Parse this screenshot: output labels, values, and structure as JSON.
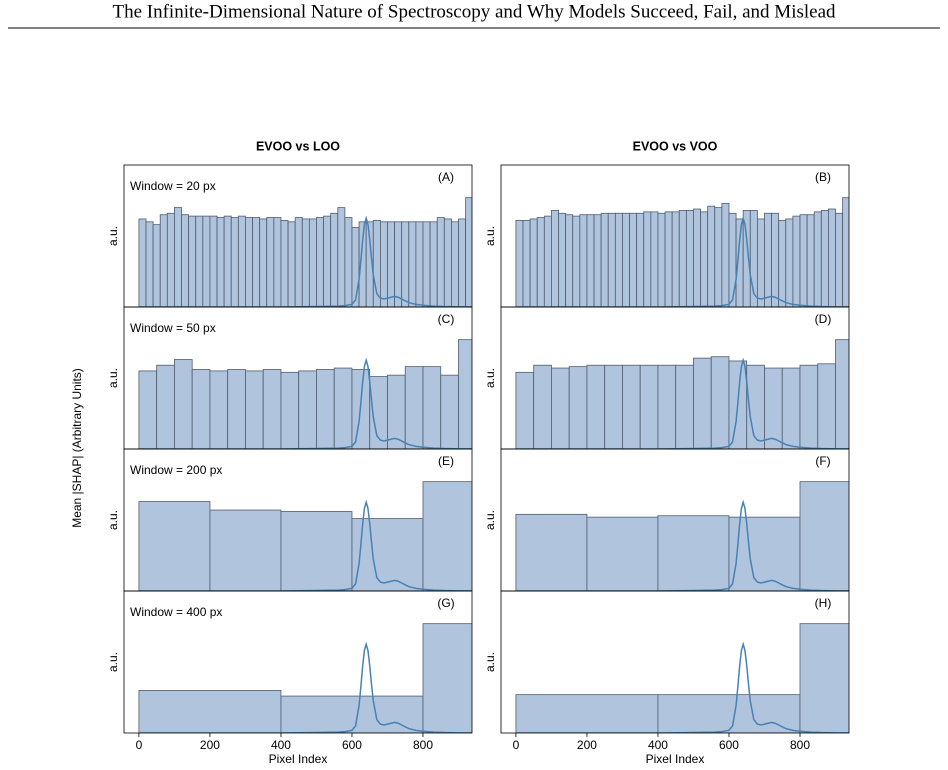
{
  "header": {
    "title": "The Infinite-Dimensional Nature of Spectroscopy and Why Models Succeed, Fail, and Mislead"
  },
  "figure_ylabel": "Mean |SHAP| (Arbitrary Units)",
  "spectrum": {
    "color": "#4682b4",
    "ylim": [
      0,
      1.6
    ],
    "x": [
      0,
      100,
      200,
      300,
      400,
      500,
      560,
      580,
      600,
      610,
      620,
      625,
      630,
      635,
      640,
      645,
      650,
      655,
      660,
      670,
      680,
      690,
      700,
      710,
      720,
      730,
      740,
      750,
      760,
      780,
      800,
      830,
      860,
      900,
      938
    ],
    "values": [
      0,
      0,
      0,
      0,
      0,
      0.005,
      0.01,
      0.015,
      0.03,
      0.08,
      0.31,
      0.52,
      0.75,
      0.93,
      1.0,
      0.93,
      0.76,
      0.55,
      0.36,
      0.15,
      0.1,
      0.09,
      0.1,
      0.11,
      0.12,
      0.11,
      0.09,
      0.07,
      0.05,
      0.03,
      0.02,
      0.01,
      0.005,
      0.002,
      0.001
    ]
  },
  "chart_data": [
    {
      "type": "histogram",
      "title": "EVOO vs LOO",
      "panel_label": "(A)",
      "annotation": "Window = 20 px",
      "ylabel": "a.u.",
      "color": "#b0c4de",
      "xlim": [
        -42,
        938
      ],
      "ylim": [
        0,
        1
      ],
      "bins": [
        0,
        20,
        40,
        60,
        80,
        100,
        120,
        140,
        160,
        180,
        200,
        220,
        240,
        260,
        280,
        300,
        320,
        340,
        360,
        380,
        400,
        420,
        440,
        460,
        480,
        500,
        520,
        540,
        560,
        580,
        600,
        620,
        640,
        660,
        680,
        700,
        720,
        740,
        760,
        780,
        800,
        820,
        840,
        860,
        880,
        900,
        920,
        940
      ],
      "values": [
        0.62,
        0.6,
        0.58,
        0.65,
        0.66,
        0.7,
        0.65,
        0.64,
        0.64,
        0.64,
        0.64,
        0.63,
        0.64,
        0.63,
        0.64,
        0.63,
        0.63,
        0.62,
        0.63,
        0.63,
        0.61,
        0.6,
        0.63,
        0.62,
        0.62,
        0.63,
        0.64,
        0.66,
        0.7,
        0.63,
        0.56,
        0.6,
        0.6,
        0.61,
        0.6,
        0.6,
        0.6,
        0.6,
        0.6,
        0.6,
        0.6,
        0.6,
        0.63,
        0.62,
        0.6,
        0.62,
        0.77
      ]
    },
    {
      "type": "histogram",
      "title": "EVOO vs VOO",
      "panel_label": "(B)",
      "ylabel": "a.u.",
      "color": "#b0c4de",
      "xlim": [
        -42,
        938
      ],
      "ylim": [
        0,
        1
      ],
      "bins": [
        0,
        20,
        40,
        60,
        80,
        100,
        120,
        140,
        160,
        180,
        200,
        220,
        240,
        260,
        280,
        300,
        320,
        340,
        360,
        380,
        400,
        420,
        440,
        460,
        480,
        500,
        520,
        540,
        560,
        580,
        600,
        620,
        640,
        660,
        680,
        700,
        720,
        740,
        760,
        780,
        800,
        820,
        840,
        860,
        880,
        900,
        920,
        940
      ],
      "values": [
        0.61,
        0.61,
        0.62,
        0.63,
        0.64,
        0.68,
        0.66,
        0.65,
        0.64,
        0.65,
        0.65,
        0.65,
        0.66,
        0.66,
        0.66,
        0.66,
        0.66,
        0.66,
        0.67,
        0.67,
        0.66,
        0.67,
        0.67,
        0.68,
        0.68,
        0.69,
        0.67,
        0.71,
        0.7,
        0.73,
        0.66,
        0.62,
        0.68,
        0.68,
        0.62,
        0.66,
        0.66,
        0.61,
        0.62,
        0.64,
        0.65,
        0.65,
        0.67,
        0.68,
        0.69,
        0.66,
        0.77
      ]
    },
    {
      "type": "histogram",
      "panel_label": "(C)",
      "annotation": "Window = 50 px",
      "ylabel": "a.u.",
      "color": "#b0c4de",
      "xlim": [
        -42,
        938
      ],
      "ylim": [
        0,
        1
      ],
      "bins": [
        0,
        50,
        100,
        150,
        200,
        250,
        300,
        350,
        400,
        450,
        500,
        550,
        600,
        650,
        700,
        750,
        800,
        850,
        900,
        950
      ],
      "values": [
        0.55,
        0.59,
        0.63,
        0.56,
        0.55,
        0.56,
        0.55,
        0.56,
        0.54,
        0.55,
        0.56,
        0.57,
        0.56,
        0.51,
        0.52,
        0.58,
        0.58,
        0.52,
        0.77
      ]
    },
    {
      "type": "histogram",
      "panel_label": "(D)",
      "ylabel": "a.u.",
      "color": "#b0c4de",
      "xlim": [
        -42,
        938
      ],
      "ylim": [
        0,
        1
      ],
      "bins": [
        0,
        50,
        100,
        150,
        200,
        250,
        300,
        350,
        400,
        450,
        500,
        550,
        600,
        650,
        700,
        750,
        800,
        850,
        900,
        950
      ],
      "values": [
        0.54,
        0.59,
        0.57,
        0.58,
        0.59,
        0.59,
        0.59,
        0.59,
        0.59,
        0.59,
        0.64,
        0.65,
        0.62,
        0.59,
        0.57,
        0.57,
        0.59,
        0.6,
        0.77
      ]
    },
    {
      "type": "histogram",
      "panel_label": "(E)",
      "annotation": "Window = 200 px",
      "ylabel": "a.u.",
      "color": "#b0c4de",
      "xlim": [
        -42,
        938
      ],
      "ylim": [
        0,
        1
      ],
      "bins": [
        0,
        200,
        400,
        600,
        800,
        1000
      ],
      "values": [
        0.63,
        0.57,
        0.56,
        0.51,
        0.77
      ]
    },
    {
      "type": "histogram",
      "panel_label": "(F)",
      "ylabel": "a.u.",
      "color": "#b0c4de",
      "xlim": [
        -42,
        938
      ],
      "ylim": [
        0,
        1
      ],
      "bins": [
        0,
        200,
        400,
        600,
        800,
        1000
      ],
      "values": [
        0.54,
        0.52,
        0.53,
        0.52,
        0.77
      ]
    },
    {
      "type": "histogram",
      "panel_label": "(G)",
      "annotation": "Window = 400 px",
      "ylabel": "a.u.",
      "xlabel": "Pixel Index",
      "color": "#b0c4de",
      "xlim": [
        -42,
        938
      ],
      "ylim": [
        0,
        1
      ],
      "xticks": [
        0,
        200,
        400,
        600,
        800
      ],
      "bins": [
        0,
        400,
        800,
        1200
      ],
      "values": [
        0.3,
        0.26,
        0.77
      ]
    },
    {
      "type": "histogram",
      "panel_label": "(H)",
      "ylabel": "a.u.",
      "xlabel": "Pixel Index",
      "color": "#b0c4de",
      "xlim": [
        -42,
        938
      ],
      "ylim": [
        0,
        1
      ],
      "xticks": [
        0,
        200,
        400,
        600,
        800
      ],
      "bins": [
        0,
        400,
        800,
        1200
      ],
      "values": [
        0.27,
        0.27,
        0.77
      ]
    }
  ]
}
